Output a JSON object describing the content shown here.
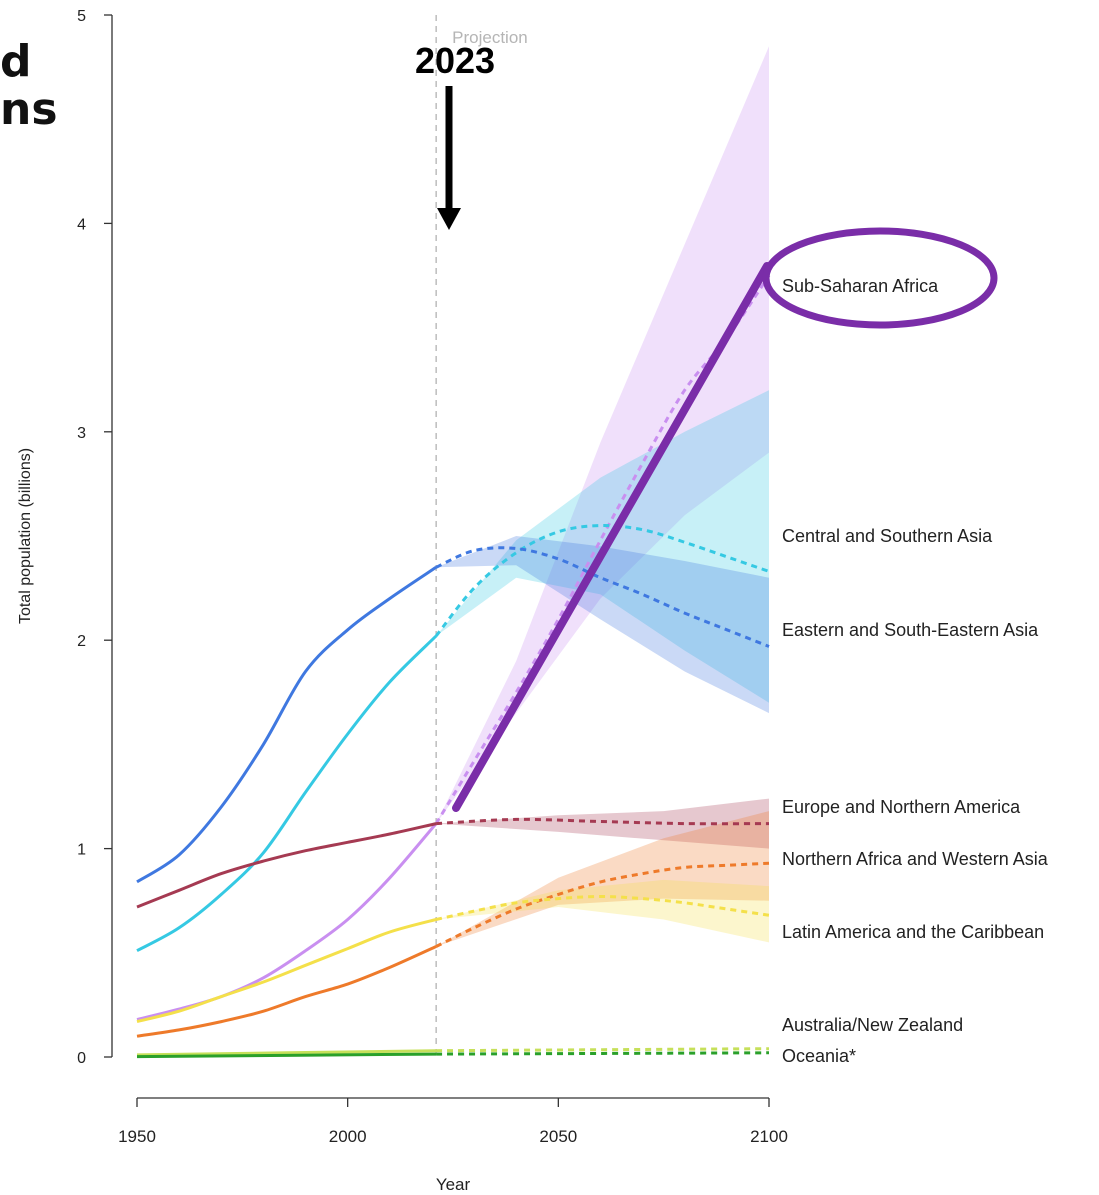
{
  "cut_title": "d\nns",
  "annotation": {
    "year_label": "2023",
    "projection_label": "Projection"
  },
  "colors": {
    "sub_saharan_africa": "#c98ff0",
    "central_southern_asia": "#35c9e3",
    "eastern_se_asia": "#3f78e0",
    "europe_n_america": "#a53a52",
    "n_africa_w_asia": "#ee7a2a",
    "latin_america": "#f4e04a",
    "australia_nz": "#c6e05a",
    "oceania": "#2aa02a",
    "highlight": "#7a2da8"
  },
  "chart_data": {
    "type": "line",
    "xlabel": "Year",
    "ylabel": "Total population (billions)",
    "xlim": [
      1950,
      2100
    ],
    "ylim": [
      0,
      5
    ],
    "x_ticks": [
      "1950",
      "2000",
      "2050",
      "2100"
    ],
    "y_ticks": [
      "0",
      "1",
      "2",
      "3",
      "4",
      "5"
    ],
    "projection_start": 2021,
    "series": [
      {
        "name": "Sub-Saharan Africa",
        "color": "#c98ff0",
        "observed": [
          [
            1950,
            0.18
          ],
          [
            1960,
            0.23
          ],
          [
            1970,
            0.29
          ],
          [
            1980,
            0.38
          ],
          [
            1990,
            0.51
          ],
          [
            2000,
            0.66
          ],
          [
            2010,
            0.86
          ],
          [
            2021,
            1.12
          ]
        ],
        "projected": [
          [
            2021,
            1.12
          ],
          [
            2030,
            1.42
          ],
          [
            2040,
            1.75
          ],
          [
            2050,
            2.1
          ],
          [
            2060,
            2.48
          ],
          [
            2070,
            2.85
          ],
          [
            2080,
            3.2
          ],
          [
            2090,
            3.45
          ],
          [
            2100,
            3.75
          ]
        ],
        "band_lower": [
          [
            2021,
            1.12
          ],
          [
            2040,
            1.65
          ],
          [
            2060,
            2.2
          ],
          [
            2080,
            2.6
          ],
          [
            2100,
            2.9
          ]
        ],
        "band_upper": [
          [
            2021,
            1.12
          ],
          [
            2040,
            1.9
          ],
          [
            2060,
            2.95
          ],
          [
            2080,
            3.9
          ],
          [
            2100,
            4.85
          ]
        ]
      },
      {
        "name": "Central and Southern Asia",
        "color": "#35c9e3",
        "observed": [
          [
            1950,
            0.51
          ],
          [
            1960,
            0.62
          ],
          [
            1970,
            0.78
          ],
          [
            1980,
            0.98
          ],
          [
            1990,
            1.27
          ],
          [
            2000,
            1.55
          ],
          [
            2010,
            1.8
          ],
          [
            2021,
            2.02
          ]
        ],
        "projected": [
          [
            2021,
            2.02
          ],
          [
            2030,
            2.25
          ],
          [
            2040,
            2.42
          ],
          [
            2050,
            2.52
          ],
          [
            2060,
            2.55
          ],
          [
            2070,
            2.53
          ],
          [
            2080,
            2.47
          ],
          [
            2090,
            2.4
          ],
          [
            2100,
            2.33
          ]
        ],
        "band_lower": [
          [
            2021,
            2.02
          ],
          [
            2040,
            2.3
          ],
          [
            2060,
            2.22
          ],
          [
            2080,
            1.95
          ],
          [
            2100,
            1.7
          ]
        ],
        "band_upper": [
          [
            2021,
            2.02
          ],
          [
            2040,
            2.48
          ],
          [
            2060,
            2.78
          ],
          [
            2080,
            3.0
          ],
          [
            2100,
            3.2
          ]
        ]
      },
      {
        "name": "Eastern and South-Eastern Asia",
        "color": "#3f78e0",
        "observed": [
          [
            1950,
            0.84
          ],
          [
            1960,
            0.97
          ],
          [
            1970,
            1.2
          ],
          [
            1980,
            1.5
          ],
          [
            1990,
            1.85
          ],
          [
            2000,
            2.05
          ],
          [
            2010,
            2.2
          ],
          [
            2021,
            2.35
          ]
        ],
        "projected": [
          [
            2021,
            2.35
          ],
          [
            2030,
            2.43
          ],
          [
            2040,
            2.44
          ],
          [
            2050,
            2.39
          ],
          [
            2060,
            2.3
          ],
          [
            2070,
            2.22
          ],
          [
            2080,
            2.13
          ],
          [
            2090,
            2.05
          ],
          [
            2100,
            1.97
          ]
        ],
        "band_lower": [
          [
            2021,
            2.35
          ],
          [
            2040,
            2.36
          ],
          [
            2060,
            2.1
          ],
          [
            2080,
            1.85
          ],
          [
            2100,
            1.65
          ]
        ],
        "band_upper": [
          [
            2021,
            2.35
          ],
          [
            2040,
            2.5
          ],
          [
            2060,
            2.45
          ],
          [
            2080,
            2.38
          ],
          [
            2100,
            2.3
          ]
        ]
      },
      {
        "name": "Europe and Northern America",
        "color": "#a53a52",
        "observed": [
          [
            1950,
            0.72
          ],
          [
            1960,
            0.8
          ],
          [
            1970,
            0.88
          ],
          [
            1980,
            0.94
          ],
          [
            1990,
            0.99
          ],
          [
            2000,
            1.03
          ],
          [
            2010,
            1.07
          ],
          [
            2021,
            1.12
          ]
        ],
        "projected": [
          [
            2021,
            1.12
          ],
          [
            2040,
            1.14
          ],
          [
            2060,
            1.13
          ],
          [
            2080,
            1.12
          ],
          [
            2100,
            1.12
          ]
        ],
        "band_lower": [
          [
            2021,
            1.12
          ],
          [
            2050,
            1.08
          ],
          [
            2075,
            1.04
          ],
          [
            2100,
            1.0
          ]
        ],
        "band_upper": [
          [
            2021,
            1.12
          ],
          [
            2050,
            1.16
          ],
          [
            2075,
            1.18
          ],
          [
            2100,
            1.24
          ]
        ]
      },
      {
        "name": "Northern Africa and Western Asia",
        "color": "#ee7a2a",
        "observed": [
          [
            1950,
            0.1
          ],
          [
            1960,
            0.13
          ],
          [
            1970,
            0.17
          ],
          [
            1980,
            0.22
          ],
          [
            1990,
            0.29
          ],
          [
            2000,
            0.35
          ],
          [
            2010,
            0.43
          ],
          [
            2021,
            0.53
          ]
        ],
        "projected": [
          [
            2021,
            0.53
          ],
          [
            2030,
            0.62
          ],
          [
            2040,
            0.71
          ],
          [
            2050,
            0.78
          ],
          [
            2060,
            0.84
          ],
          [
            2070,
            0.88
          ],
          [
            2080,
            0.91
          ],
          [
            2090,
            0.92
          ],
          [
            2100,
            0.93
          ]
        ],
        "band_lower": [
          [
            2021,
            0.53
          ],
          [
            2050,
            0.73
          ],
          [
            2075,
            0.76
          ],
          [
            2100,
            0.75
          ]
        ],
        "band_upper": [
          [
            2021,
            0.53
          ],
          [
            2050,
            0.86
          ],
          [
            2075,
            1.05
          ],
          [
            2100,
            1.18
          ]
        ]
      },
      {
        "name": "Latin America and the Caribbean",
        "color": "#f4e04a",
        "observed": [
          [
            1950,
            0.17
          ],
          [
            1960,
            0.22
          ],
          [
            1970,
            0.29
          ],
          [
            1980,
            0.36
          ],
          [
            1990,
            0.44
          ],
          [
            2000,
            0.52
          ],
          [
            2010,
            0.6
          ],
          [
            2021,
            0.66
          ]
        ],
        "projected": [
          [
            2021,
            0.66
          ],
          [
            2030,
            0.7
          ],
          [
            2040,
            0.74
          ],
          [
            2050,
            0.76
          ],
          [
            2060,
            0.77
          ],
          [
            2070,
            0.76
          ],
          [
            2080,
            0.74
          ],
          [
            2090,
            0.71
          ],
          [
            2100,
            0.68
          ]
        ],
        "band_lower": [
          [
            2021,
            0.66
          ],
          [
            2050,
            0.72
          ],
          [
            2075,
            0.66
          ],
          [
            2100,
            0.55
          ]
        ],
        "band_upper": [
          [
            2021,
            0.66
          ],
          [
            2050,
            0.8
          ],
          [
            2075,
            0.85
          ],
          [
            2100,
            0.82
          ]
        ]
      },
      {
        "name": "Australia/New Zealand",
        "color": "#c6e05a",
        "observed": [
          [
            1950,
            0.01
          ],
          [
            2021,
            0.03
          ]
        ],
        "projected": [
          [
            2021,
            0.03
          ],
          [
            2100,
            0.04
          ]
        ],
        "band_lower": [],
        "band_upper": []
      },
      {
        "name": "Oceania*",
        "color": "#2aa02a",
        "observed": [
          [
            1950,
            0.002
          ],
          [
            2021,
            0.014
          ]
        ],
        "projected": [
          [
            2021,
            0.014
          ],
          [
            2100,
            0.02
          ]
        ],
        "band_lower": [],
        "band_upper": []
      }
    ]
  }
}
